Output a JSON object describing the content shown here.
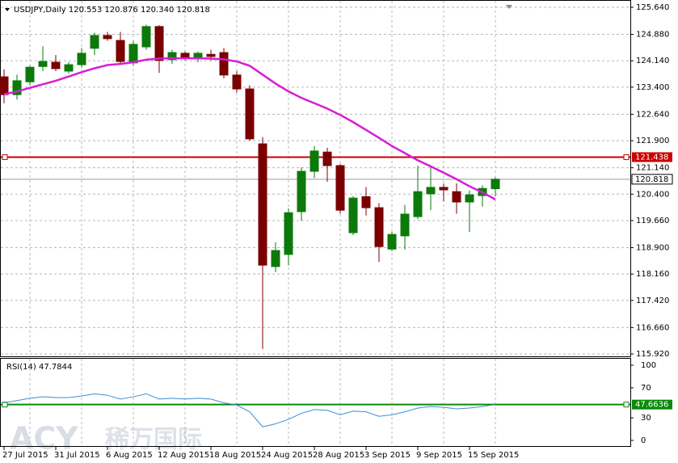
{
  "chart_data": {
    "type": "candlestick",
    "title": "USDJPY,Daily  120.553 120.876 120.340 120.818",
    "categories": [
      "27 Jul 2015",
      null,
      null,
      null,
      "31 Jul 2015",
      null,
      null,
      null,
      "6 Aug 2015",
      null,
      null,
      null,
      "12 Aug 2015",
      null,
      null,
      null,
      "18 Aug 2015",
      null,
      null,
      null,
      "24 Aug 2015",
      null,
      null,
      null,
      "28 Aug 2015",
      null,
      null,
      null,
      "3 Sep 2015",
      null,
      null,
      null,
      "9 Sep 2015",
      null,
      null,
      null,
      "15 Sep 2015",
      null,
      null
    ],
    "candles": {
      "open": [
        123.69,
        123.19,
        123.55,
        123.98,
        124.1,
        123.85,
        124.03,
        124.49,
        124.85,
        124.71,
        124.08,
        124.53,
        125.1,
        124.17,
        124.35,
        124.19,
        124.32,
        124.37,
        123.74,
        123.35,
        121.81,
        118.37,
        118.71,
        119.91,
        121.04,
        121.58,
        121.2,
        119.32,
        120.33,
        120.02,
        118.86,
        119.23,
        119.77,
        120.41,
        120.59,
        120.47,
        120.18,
        120.36,
        120.553
      ],
      "high": [
        123.9,
        123.75,
        124.0,
        124.55,
        124.3,
        124.1,
        124.5,
        124.93,
        124.95,
        124.95,
        124.7,
        125.15,
        125.14,
        124.45,
        124.4,
        124.4,
        124.45,
        124.5,
        123.85,
        123.45,
        122.0,
        119.05,
        120.0,
        121.15,
        121.75,
        121.7,
        121.25,
        120.35,
        120.6,
        120.15,
        119.35,
        120.1,
        121.2,
        121.2,
        120.7,
        120.7,
        120.5,
        120.65,
        120.876
      ],
      "low": [
        122.95,
        123.05,
        123.45,
        123.85,
        123.85,
        123.78,
        123.95,
        124.3,
        124.7,
        124.05,
        124.0,
        124.45,
        123.8,
        124.05,
        124.15,
        124.1,
        124.15,
        123.65,
        123.25,
        121.9,
        116.06,
        118.21,
        118.4,
        119.65,
        120.85,
        120.75,
        119.85,
        119.25,
        119.8,
        118.5,
        118.8,
        118.85,
        119.7,
        119.95,
        120.2,
        119.85,
        119.34,
        120.05,
        120.34
      ],
      "close": [
        123.19,
        123.58,
        123.96,
        124.12,
        123.92,
        124.03,
        124.35,
        124.85,
        124.76,
        124.12,
        124.6,
        125.1,
        124.15,
        124.37,
        124.24,
        124.35,
        124.26,
        123.74,
        123.35,
        121.95,
        118.41,
        118.82,
        119.88,
        121.04,
        121.61,
        121.2,
        119.95,
        120.29,
        120.02,
        118.93,
        119.27,
        119.84,
        120.47,
        120.59,
        120.52,
        120.18,
        120.38,
        120.56,
        120.818
      ]
    },
    "up_color": "#0b7a0b",
    "down_color": "#7a0000",
    "ma": {
      "color": "#d41fd4",
      "values": [
        123.2,
        123.28,
        123.38,
        123.48,
        123.58,
        123.7,
        123.82,
        123.93,
        124.02,
        124.05,
        124.1,
        124.17,
        124.2,
        124.21,
        124.21,
        124.21,
        124.2,
        124.18,
        124.12,
        124.0,
        123.75,
        123.5,
        123.28,
        123.1,
        122.95,
        122.8,
        122.62,
        122.42,
        122.2,
        121.98,
        121.75,
        121.55,
        121.35,
        121.18,
        121.0,
        120.82,
        120.62,
        120.45,
        120.25
      ]
    },
    "level": {
      "value": 121.438,
      "color": "#cc0000"
    },
    "current_price": 120.818,
    "ylim": [
      115.875,
      125.844
    ],
    "yticks": [
      {
        "value": 125.64,
        "label": "125.640"
      },
      {
        "value": 124.88,
        "label": "124.880"
      },
      {
        "value": 124.14,
        "label": "124.140"
      },
      {
        "value": 123.4,
        "label": "123.400"
      },
      {
        "value": 122.64,
        "label": "122.640"
      },
      {
        "value": 121.9,
        "label": "121.900"
      },
      {
        "value": 121.14,
        "label": "121.140"
      },
      {
        "value": 120.4,
        "label": "120.400"
      },
      {
        "value": 119.66,
        "label": "119.660"
      },
      {
        "value": 118.9,
        "label": "118.900"
      },
      {
        "value": 118.16,
        "label": "118.160"
      },
      {
        "value": 117.42,
        "label": "117.420"
      },
      {
        "value": 116.66,
        "label": "116.660"
      },
      {
        "value": 115.92,
        "label": "115.920"
      }
    ],
    "rsi": {
      "title": "RSI(14) 47.7844",
      "color": "#3c8fd4",
      "values": [
        50,
        53,
        56,
        58,
        57,
        57,
        59,
        62,
        60,
        55,
        58,
        62,
        55,
        56,
        55,
        56,
        55,
        50,
        47,
        38,
        18,
        22,
        28,
        36,
        41,
        40,
        34,
        39,
        38,
        32,
        34,
        38,
        43,
        45,
        44,
        42,
        43,
        45,
        47.78
      ],
      "level": 47.6636,
      "level_color": "#0a8a0a",
      "ylim": [
        0,
        100
      ],
      "yticks": [
        100,
        70,
        30,
        0
      ]
    },
    "grid": true,
    "watermark": [
      "ACY",
      "稀万国际"
    ]
  }
}
